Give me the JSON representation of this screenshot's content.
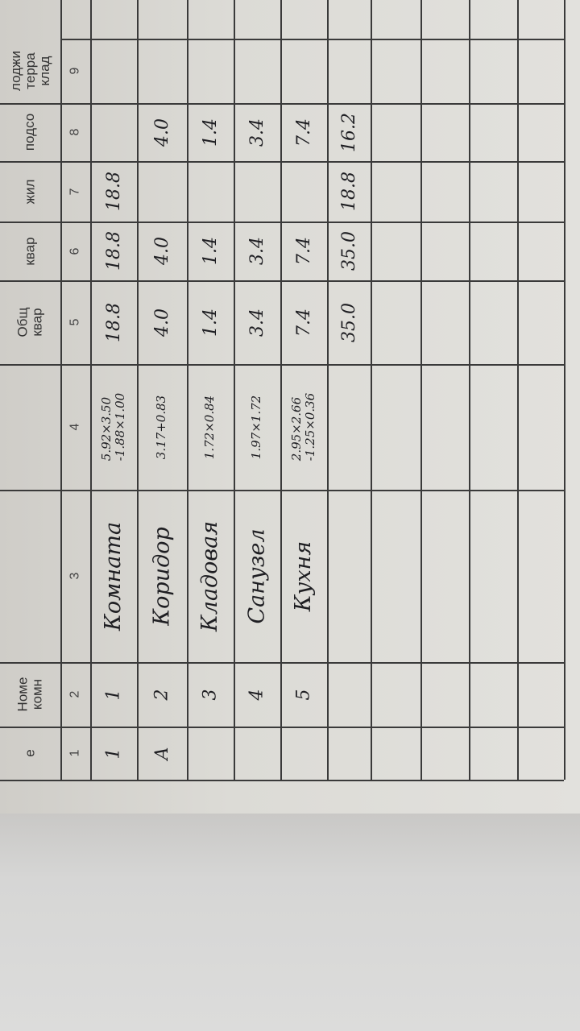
{
  "header_labels": {
    "col1": "е",
    "col2": [
      "Номе",
      "комн"
    ],
    "col5": [
      "Общ",
      "квар"
    ],
    "col6": "квар",
    "col7": "жил",
    "col8": "подсо",
    "col9": [
      "лоджи",
      "терра",
      "клад"
    ]
  },
  "column_numbers": [
    "1",
    "2",
    "3",
    "4",
    "5",
    "6",
    "7",
    "8",
    "9"
  ],
  "rows": [
    {
      "litera": "1",
      "room": "1",
      "name": "Комната",
      "formula": [
        "5.92×3.50",
        "-1.88×1.00"
      ],
      "total": "18.8",
      "apartment": "18.8",
      "living": "18.8",
      "auxiliary": ""
    },
    {
      "litera": "А",
      "room": "2",
      "name": "Коридор",
      "formula": [
        "3.17+0.83"
      ],
      "total": "4.0",
      "apartment": "4.0",
      "living": "",
      "auxiliary": "4.0"
    },
    {
      "litera": "",
      "room": "3",
      "name": "Кладовая",
      "formula": [
        "1.72×0.84"
      ],
      "total": "1.4",
      "apartment": "1.4",
      "living": "",
      "auxiliary": "1.4"
    },
    {
      "litera": "",
      "room": "4",
      "name": "Санузел",
      "formula": [
        "1.97×1.72"
      ],
      "total": "3.4",
      "apartment": "3.4",
      "living": "",
      "auxiliary": "3.4"
    },
    {
      "litera": "",
      "room": "5",
      "name": "Кухня",
      "formula": [
        "2.95×2.66",
        "-1.25×0.36"
      ],
      "total": "7.4",
      "apartment": "7.4",
      "living": "",
      "auxiliary": "7.4"
    }
  ],
  "totals": {
    "total": "35.0",
    "apartment": "35.0",
    "living": "18.8",
    "auxiliary": "16.2"
  }
}
